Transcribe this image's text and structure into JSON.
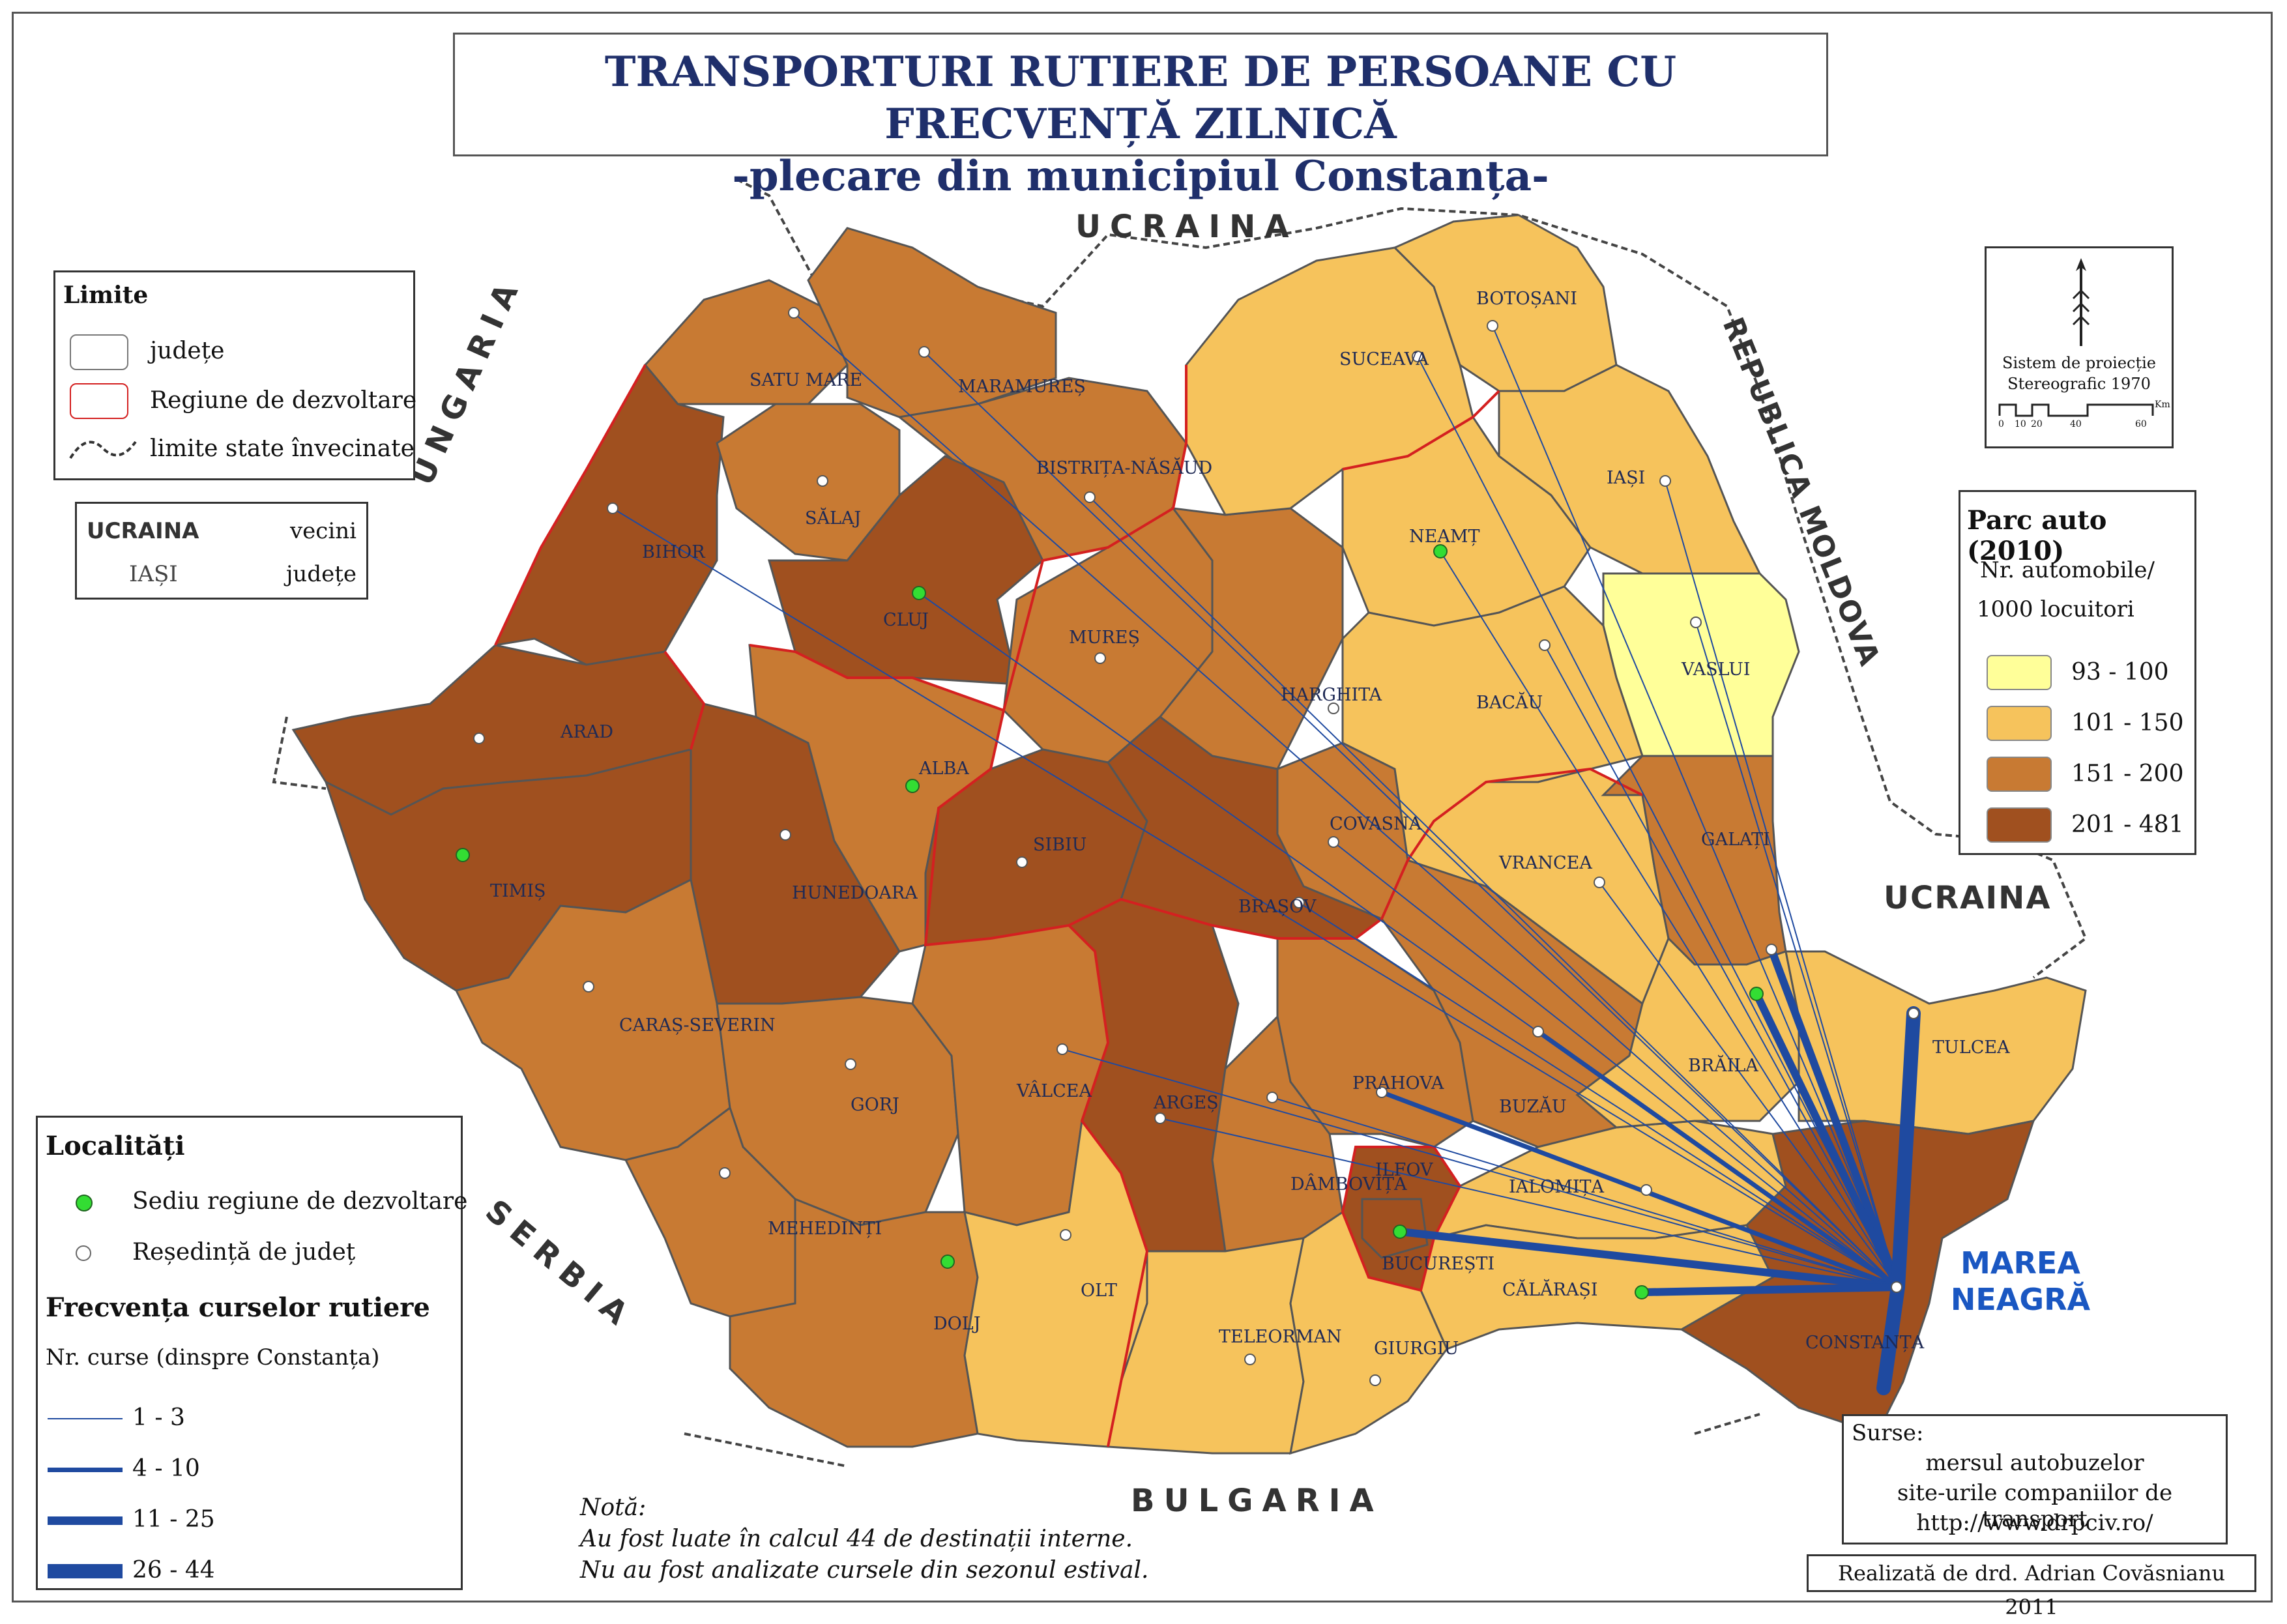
{
  "title": {
    "line1": "TRANSPORTURI RUTIERE DE PERSOANE CU FRECVENȚĂ ZILNICĂ",
    "line2": "-plecare din municipiul Constanța-"
  },
  "neighbors": {
    "ucraina_north": "UCRAINA",
    "ucraina_east": "UCRAINA",
    "ungaria": "UNGARIA",
    "republica_moldova": "REPUBLICA MOLDOVA",
    "serbia": "SERBIA",
    "bulgaria": "BULGARIA",
    "sea_line1": "MAREA",
    "sea_line2": "NEAGRĂ"
  },
  "counties": [
    {
      "id": "satu-mare",
      "name": "SATU MARE",
      "class": "151-200",
      "seat": "regular"
    },
    {
      "id": "maramures",
      "name": "MARAMUREȘ",
      "class": "151-200",
      "seat": "regular"
    },
    {
      "id": "bihor",
      "name": "BIHOR",
      "class": "201-481",
      "seat": "regular"
    },
    {
      "id": "salaj",
      "name": "SĂLAJ",
      "class": "151-200",
      "seat": "regular"
    },
    {
      "id": "bistrita",
      "name": "BISTRIȚA-NĂSĂUD",
      "class": "151-200",
      "seat": "regular"
    },
    {
      "id": "cluj",
      "name": "CLUJ",
      "class": "201-481",
      "seat": "regional"
    },
    {
      "id": "mures",
      "name": "MUREȘ",
      "class": "151-200",
      "seat": "regular"
    },
    {
      "id": "harghita",
      "name": "HARGHITA",
      "class": "151-200",
      "seat": "regular"
    },
    {
      "id": "covasna",
      "name": "COVASNA",
      "class": "151-200",
      "seat": "regular"
    },
    {
      "id": "arad",
      "name": "ARAD",
      "class": "201-481",
      "seat": "regular"
    },
    {
      "id": "timis",
      "name": "TIMIȘ",
      "class": "201-481",
      "seat": "regional"
    },
    {
      "id": "hunedoara",
      "name": "HUNEDOARA",
      "class": "201-481",
      "seat": "regular"
    },
    {
      "id": "alba",
      "name": "ALBA",
      "class": "151-200",
      "seat": "regional"
    },
    {
      "id": "sibiu",
      "name": "SIBIU",
      "class": "201-481",
      "seat": "regular"
    },
    {
      "id": "brasov",
      "name": "BRAȘOV",
      "class": "201-481",
      "seat": "regular"
    },
    {
      "id": "caras",
      "name": "CARAȘ-SEVERIN",
      "class": "151-200",
      "seat": "regular"
    },
    {
      "id": "gorj",
      "name": "GORJ",
      "class": "151-200",
      "seat": "regular"
    },
    {
      "id": "valcea",
      "name": "VÂLCEA",
      "class": "151-200",
      "seat": "regular"
    },
    {
      "id": "arges",
      "name": "ARGEȘ",
      "class": "201-481",
      "seat": "regular"
    },
    {
      "id": "prahova",
      "name": "PRAHOVA",
      "class": "151-200",
      "seat": "regular"
    },
    {
      "id": "buzau",
      "name": "BUZĂU",
      "class": "151-200",
      "seat": "regular"
    },
    {
      "id": "dambovita",
      "name": "DÂMBOVIȚA",
      "class": "151-200",
      "seat": "regular"
    },
    {
      "id": "ilfov",
      "name": "ILFOV",
      "class": "201-481",
      "seat": "none"
    },
    {
      "id": "bucuresti",
      "name": "BUCUREȘTI",
      "class": "201-481",
      "seat": "regional"
    },
    {
      "id": "ialomita",
      "name": "IALOMIȚA",
      "class": "101-150",
      "seat": "regular"
    },
    {
      "id": "calarasi",
      "name": "CĂLĂRAȘI",
      "class": "101-150",
      "seat": "regional"
    },
    {
      "id": "mehedinti",
      "name": "MEHEDINȚI",
      "class": "151-200",
      "seat": "regular"
    },
    {
      "id": "dolj",
      "name": "DOLJ",
      "class": "151-200",
      "seat": "regional"
    },
    {
      "id": "olt",
      "name": "OLT",
      "class": "101-150",
      "seat": "regular"
    },
    {
      "id": "teleorman",
      "name": "TELEORMAN",
      "class": "101-150",
      "seat": "regular"
    },
    {
      "id": "giurgiu",
      "name": "GIURGIU",
      "class": "101-150",
      "seat": "regular"
    },
    {
      "id": "suceava",
      "name": "SUCEAVA",
      "class": "101-150",
      "seat": "regular"
    },
    {
      "id": "botosani",
      "name": "BOTOȘANI",
      "class": "101-150",
      "seat": "regular"
    },
    {
      "id": "iasi",
      "name": "IAȘI",
      "class": "101-150",
      "seat": "regular"
    },
    {
      "id": "neamt",
      "name": "NEAMȚ",
      "class": "101-150",
      "seat": "regional"
    },
    {
      "id": "vaslui",
      "name": "VASLUI",
      "class": "93-100",
      "seat": "regular"
    },
    {
      "id": "bacau",
      "name": "BACĂU",
      "class": "101-150",
      "seat": "regular"
    },
    {
      "id": "vrancea",
      "name": "VRANCEA",
      "class": "101-150",
      "seat": "regular"
    },
    {
      "id": "galati",
      "name": "GALAȚI",
      "class": "151-200",
      "seat": "regular"
    },
    {
      "id": "braila",
      "name": "BRĂILA",
      "class": "101-150",
      "seat": "regional"
    },
    {
      "id": "tulcea",
      "name": "TULCEA",
      "class": "101-150",
      "seat": "regular"
    },
    {
      "id": "constanta",
      "name": "CONSTANȚA",
      "class": "201-481",
      "seat": "regular"
    }
  ],
  "legend_limits": {
    "title": "Limite",
    "judete": "județe",
    "regiune": "Regiune de dezvoltare",
    "state": "limite state învecinate"
  },
  "legend_labels": {
    "neighbor_example": "UCRAINA",
    "neighbor_desc": "vecini",
    "county_example": "IAȘI",
    "county_desc": "județe"
  },
  "projection": {
    "line1": "Sistem de proiecție",
    "line2": "Stereografic 1970",
    "scale_ticks": [
      "0",
      "10",
      "20",
      "40",
      "60"
    ],
    "scale_unit": "Km"
  },
  "parc_auto": {
    "title": "Parc auto (2010)",
    "subtitle1": "Nr. automobile/",
    "subtitle2": "1000 locuitori",
    "classes": [
      {
        "label": "93 - 100",
        "color": "#ffff99"
      },
      {
        "label": "101 - 150",
        "color": "#f6c35c"
      },
      {
        "label": "151 - 200",
        "color": "#c87a33"
      },
      {
        "label": "201 - 481",
        "color": "#a0501f"
      }
    ]
  },
  "localitati": {
    "title": "Localități",
    "regional": "Sediu regiune de dezvoltare",
    "seat": "Reședință de județ",
    "freq_title": "Frecvența curselor rutiere",
    "freq_sub": "Nr. curse (dinspre Constanța)",
    "classes": [
      "1 - 3",
      "4 - 10",
      "11 - 25",
      "26 - 44"
    ]
  },
  "sources": {
    "title": "Surse:",
    "line1": "mersul autobuzelor",
    "line2": "site-urile companiilor de transport",
    "line3": "http://www.drpciv.ro/"
  },
  "author": "Realizată de drd. Adrian Covăsnianu 2011",
  "note": {
    "title": "Notă:",
    "line1": "Au fost luate în calcul 44 de destinații interne.",
    "line2": "Nu au fost analizate cursele din sezonul estival."
  },
  "colors": {
    "c93": "#ffff99",
    "c101": "#f6c35c",
    "c151": "#c87a33",
    "c201": "#a0501f",
    "route": "#1f4aa0",
    "region_border": "#d42020",
    "regional_seat": "#33dd33"
  },
  "routes": [
    {
      "to": "satu-mare",
      "class": 1
    },
    {
      "to": "maramures",
      "class": 1
    },
    {
      "to": "bihor",
      "class": 1
    },
    {
      "to": "cluj",
      "class": 1
    },
    {
      "to": "bistrita",
      "class": 1
    },
    {
      "to": "suceava",
      "class": 1
    },
    {
      "to": "botosani",
      "class": 1
    },
    {
      "to": "iasi",
      "class": 1
    },
    {
      "to": "neamt",
      "class": 1
    },
    {
      "to": "vaslui",
      "class": 1
    },
    {
      "to": "bacau",
      "class": 1
    },
    {
      "to": "vrancea",
      "class": 1
    },
    {
      "to": "brasov",
      "class": 1
    },
    {
      "to": "valcea",
      "class": 1
    },
    {
      "to": "arges",
      "class": 1
    },
    {
      "to": "dambovita",
      "class": 1
    },
    {
      "to": "covasna",
      "class": 1
    },
    {
      "to": "galati",
      "class": 3
    },
    {
      "to": "braila",
      "class": 3
    },
    {
      "to": "buzau",
      "class": 2
    },
    {
      "to": "prahova",
      "class": 2
    },
    {
      "to": "ialomita",
      "class": 1
    },
    {
      "to": "bucuresti",
      "class": 3
    },
    {
      "to": "calarasi",
      "class": 3
    },
    {
      "to": "tulcea",
      "class": 4
    },
    {
      "to": "constanta-south",
      "class": 4
    }
  ]
}
